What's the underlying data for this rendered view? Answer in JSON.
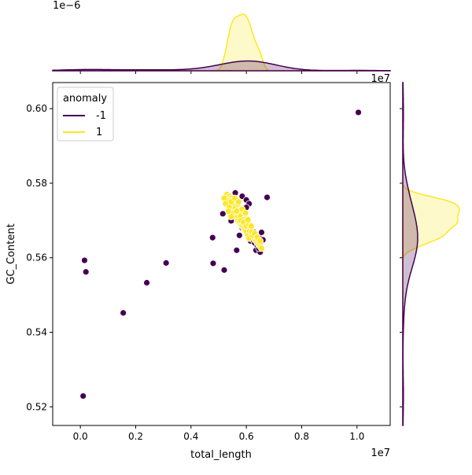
{
  "chart_data": {
    "type": "scatter",
    "xlabel": "total_length",
    "ylabel": "GC_Content",
    "x_offset_label": "1e7",
    "y_offset_label": "",
    "xlim": [
      -0.1,
      1.12
    ],
    "ylim": [
      0.515,
      0.607
    ],
    "x_ticks": [
      0.0,
      0.2,
      0.4,
      0.6,
      0.8,
      1.0
    ],
    "x_tick_labels": [
      "0.0",
      "0.2",
      "0.4",
      "0.6",
      "0.8",
      "1.0"
    ],
    "y_ticks": [
      0.52,
      0.54,
      0.56,
      0.58,
      0.6
    ],
    "y_tick_labels": [
      "0.52",
      "0.54",
      "0.56",
      "0.58",
      "0.60"
    ],
    "legend": {
      "title": "anomaly",
      "position": "upper-left",
      "entries": [
        {
          "label": "-1",
          "color": "#440154"
        },
        {
          "label": "1",
          "color": "#fde725"
        }
      ]
    },
    "series": [
      {
        "name": "-1",
        "color": "#440154",
        "points": [
          [
            0.01,
            0.5229
          ],
          [
            0.015,
            0.5593
          ],
          [
            0.02,
            0.5562
          ],
          [
            0.155,
            0.5452
          ],
          [
            0.24,
            0.5533
          ],
          [
            0.31,
            0.5586
          ],
          [
            0.478,
            0.5654
          ],
          [
            0.48,
            0.5585
          ],
          [
            0.52,
            0.5567
          ],
          [
            0.515,
            0.5718
          ],
          [
            0.545,
            0.5699
          ],
          [
            0.56,
            0.5774
          ],
          [
            0.565,
            0.562
          ],
          [
            0.575,
            0.566
          ],
          [
            0.585,
            0.5765
          ],
          [
            0.6,
            0.5755
          ],
          [
            0.61,
            0.5745
          ],
          [
            0.675,
            0.5762
          ],
          [
            0.625,
            0.567
          ],
          [
            0.645,
            0.5655
          ],
          [
            0.655,
            0.5668
          ],
          [
            0.66,
            0.5648
          ],
          [
            0.615,
            0.5645
          ],
          [
            0.63,
            0.564
          ],
          [
            0.64,
            0.563
          ],
          [
            0.635,
            0.562
          ],
          [
            0.65,
            0.5615
          ],
          [
            0.645,
            0.5625
          ],
          [
            0.62,
            0.566
          ],
          [
            0.605,
            0.5668
          ],
          [
            0.595,
            0.57
          ],
          [
            0.59,
            0.572
          ],
          [
            0.6,
            0.5735
          ],
          [
            0.62,
            0.565
          ],
          [
            0.65,
            0.564
          ],
          [
            0.585,
            0.568
          ],
          [
            1.005,
            0.599
          ]
        ]
      },
      {
        "name": "1",
        "color": "#fde725",
        "points": [
          [
            0.53,
            0.577
          ],
          [
            0.54,
            0.5765
          ],
          [
            0.545,
            0.576
          ],
          [
            0.55,
            0.5755
          ],
          [
            0.535,
            0.5752
          ],
          [
            0.555,
            0.5748
          ],
          [
            0.56,
            0.5745
          ],
          [
            0.54,
            0.5742
          ],
          [
            0.565,
            0.574
          ],
          [
            0.57,
            0.5735
          ],
          [
            0.548,
            0.573
          ],
          [
            0.575,
            0.5728
          ],
          [
            0.58,
            0.5722
          ],
          [
            0.555,
            0.5725
          ],
          [
            0.585,
            0.5718
          ],
          [
            0.59,
            0.5712
          ],
          [
            0.56,
            0.5715
          ],
          [
            0.565,
            0.5708
          ],
          [
            0.595,
            0.5705
          ],
          [
            0.57,
            0.57
          ],
          [
            0.575,
            0.5695
          ],
          [
            0.6,
            0.5698
          ],
          [
            0.58,
            0.569
          ],
          [
            0.605,
            0.5688
          ],
          [
            0.585,
            0.5685
          ],
          [
            0.59,
            0.568
          ],
          [
            0.61,
            0.5678
          ],
          [
            0.595,
            0.5675
          ],
          [
            0.6,
            0.567
          ],
          [
            0.615,
            0.5668
          ],
          [
            0.62,
            0.5662
          ],
          [
            0.605,
            0.566
          ],
          [
            0.625,
            0.5655
          ],
          [
            0.61,
            0.5652
          ],
          [
            0.63,
            0.565
          ],
          [
            0.635,
            0.5645
          ],
          [
            0.64,
            0.564
          ],
          [
            0.645,
            0.5635
          ],
          [
            0.65,
            0.563
          ],
          [
            0.655,
            0.5625
          ],
          [
            0.55,
            0.574
          ],
          [
            0.56,
            0.5732
          ],
          [
            0.578,
            0.571
          ],
          [
            0.588,
            0.5702
          ],
          [
            0.598,
            0.569
          ],
          [
            0.612,
            0.5672
          ],
          [
            0.622,
            0.566
          ],
          [
            0.57,
            0.5745
          ],
          [
            0.545,
            0.575
          ],
          [
            0.52,
            0.576
          ],
          [
            0.525,
            0.5745
          ],
          [
            0.538,
            0.5735
          ],
          [
            0.55,
            0.572
          ],
          [
            0.565,
            0.5725
          ],
          [
            0.58,
            0.57
          ],
          [
            0.59,
            0.5695
          ],
          [
            0.6,
            0.5685
          ],
          [
            0.61,
            0.569
          ],
          [
            0.62,
            0.567
          ],
          [
            0.63,
            0.5665
          ],
          [
            0.64,
            0.5655
          ],
          [
            0.65,
            0.5645
          ],
          [
            0.558,
            0.576
          ],
          [
            0.572,
            0.575
          ],
          [
            0.585,
            0.573
          ],
          [
            0.597,
            0.572
          ],
          [
            0.545,
            0.571
          ],
          [
            0.535,
            0.5725
          ],
          [
            0.606,
            0.5702
          ],
          [
            0.618,
            0.5685
          ]
        ]
      }
    ],
    "top_marginal": {
      "offset_label": "1e−6",
      "note_axis": "density over total_length"
    },
    "right_marginal": {
      "note_axis": "density over GC_Content"
    }
  }
}
